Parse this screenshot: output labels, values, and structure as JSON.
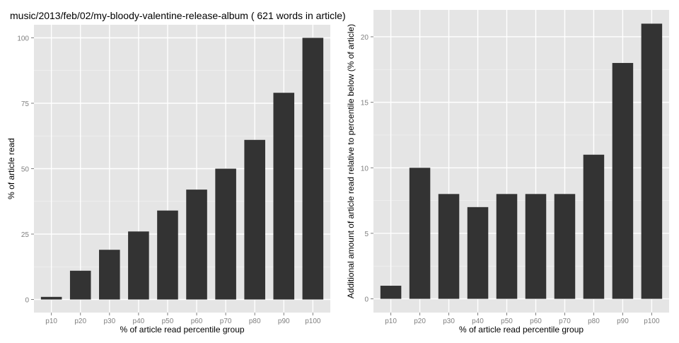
{
  "chart_data": [
    {
      "type": "bar",
      "title": "music/2013/feb/02/my-bloody-valentine-release-album ( 621 words in article)",
      "xlabel": "% of article read percentile group",
      "ylabel": "% of article read",
      "categories": [
        "p10",
        "p20",
        "p30",
        "p40",
        "p50",
        "p60",
        "p70",
        "p80",
        "p90",
        "p100"
      ],
      "values": [
        1,
        11,
        19,
        26,
        34,
        42,
        50,
        61,
        79,
        100
      ],
      "yticks": [
        0,
        25,
        50,
        75,
        100
      ],
      "ylim": [
        -5,
        105
      ],
      "grid": true,
      "bar_color": "#333333",
      "panel_color": "#e5e5e5"
    },
    {
      "type": "bar",
      "title": "",
      "xlabel": "% of article read percentile group",
      "ylabel": "Additional amount of article read relative to percentile below (% of article)",
      "categories": [
        "p10",
        "p20",
        "p30",
        "p40",
        "p50",
        "p60",
        "p70",
        "p80",
        "p90",
        "p100"
      ],
      "values": [
        1,
        10,
        8,
        7,
        8,
        8,
        8,
        11,
        18,
        21
      ],
      "yticks": [
        0,
        5,
        10,
        15,
        20
      ],
      "ylim": [
        -1.05,
        22.05
      ],
      "grid": true,
      "bar_color": "#333333",
      "panel_color": "#e5e5e5"
    }
  ]
}
